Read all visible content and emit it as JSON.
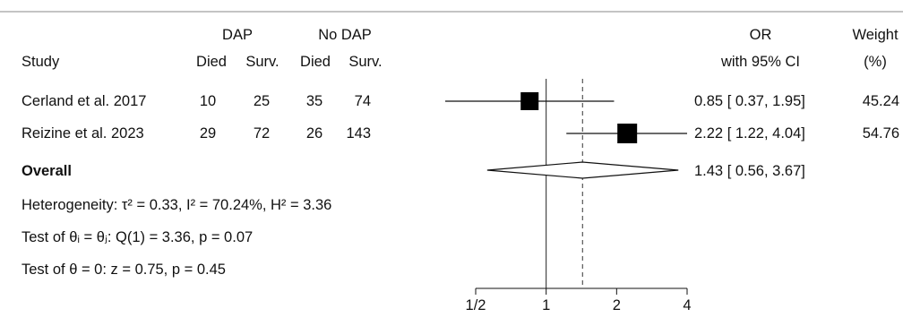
{
  "chart_data": {
    "type": "forest",
    "columns": {
      "study": "Study",
      "dap": "DAP",
      "nodap": "No DAP",
      "died": "Died",
      "surv": "Surv.",
      "or_line1": "OR",
      "or_line2": "with 95% CI",
      "weight_line1": "Weight",
      "weight_line2": "(%)"
    },
    "studies": [
      {
        "name": "Cerland et al. 2017",
        "dap_died": "10",
        "dap_surv": "25",
        "nodap_died": "35",
        "nodap_surv": "74",
        "or": 0.85,
        "lo": 0.37,
        "hi": 1.95,
        "ci_text": "0.85 [ 0.37, 1.95]",
        "weight": 45.24,
        "weight_text": "45.24"
      },
      {
        "name": "Reizine et al. 2023",
        "dap_died": "29",
        "dap_surv": "72",
        "nodap_died": "26",
        "nodap_surv": "143",
        "or": 2.22,
        "lo": 1.22,
        "hi": 4.04,
        "ci_text": "2.22 [ 1.22, 4.04]",
        "weight": 54.76,
        "weight_text": "54.76"
      }
    ],
    "overall": {
      "label": "Overall",
      "or": 1.43,
      "lo": 0.56,
      "hi": 3.67,
      "ci_text": "1.43 [ 0.56, 3.67]"
    },
    "stats": [
      "Heterogeneity: τ² = 0.33, I² = 70.24%, H² = 3.36",
      "Test of θᵢ = θⱼ: Q(1) = 3.36, p = 0.07",
      "Test of θ = 0: z = 0.75, p = 0.45"
    ],
    "x_scale": "log",
    "xlim": [
      0.5,
      4
    ],
    "null_line": 1,
    "ticks": [
      {
        "value": 0.5,
        "label": "1/2"
      },
      {
        "value": 1,
        "label": "1"
      },
      {
        "value": 2,
        "label": "2"
      },
      {
        "value": 4,
        "label": "4"
      }
    ]
  }
}
